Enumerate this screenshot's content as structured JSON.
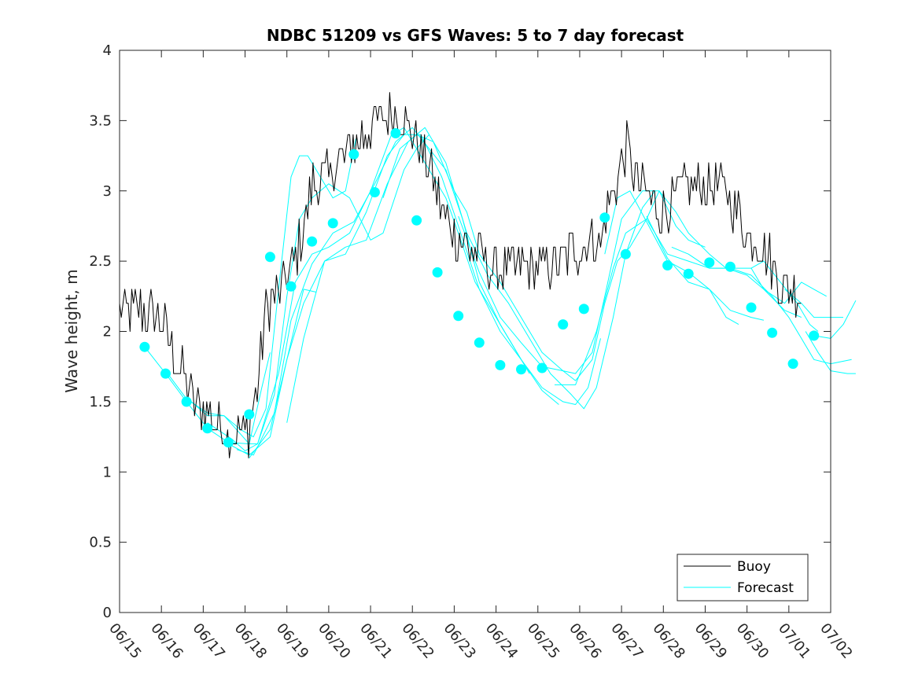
{
  "chart_data": {
    "type": "line",
    "title": "NDBC 51209 vs GFS Waves: 5 to 7 day forecast",
    "xlabel": "",
    "ylabel": "Wave height, m",
    "xlim": [
      "06/15",
      "07/02"
    ],
    "ylim": [
      0,
      4
    ],
    "yticks": [
      0,
      0.5,
      1,
      1.5,
      2,
      2.5,
      3,
      3.5,
      4
    ],
    "xtick_labels": [
      "06/15",
      "06/16",
      "06/17",
      "06/18",
      "06/19",
      "06/20",
      "06/21",
      "06/22",
      "06/23",
      "06/24",
      "06/25",
      "06/26",
      "06/27",
      "06/28",
      "06/29",
      "06/30",
      "07/01",
      "07/02"
    ],
    "grid": false,
    "legend": {
      "position": "bottom-right",
      "entries": [
        "Buoy",
        "Forecast"
      ]
    },
    "colors": {
      "buoy": "#000000",
      "forecast": "#00ffff",
      "axis": "#262626"
    },
    "buoy_anchors": [
      [
        0.0,
        2.15
      ],
      [
        0.5,
        2.15
      ],
      [
        0.9,
        2.1
      ],
      [
        1.1,
        2.0
      ],
      [
        1.5,
        1.7
      ],
      [
        1.8,
        1.5
      ],
      [
        2.2,
        1.4
      ],
      [
        2.7,
        1.25
      ],
      [
        3.1,
        1.3
      ],
      [
        3.3,
        1.6
      ],
      [
        3.5,
        2.2
      ],
      [
        3.8,
        2.25
      ],
      [
        4.3,
        2.6
      ],
      [
        4.6,
        3.05
      ],
      [
        5.0,
        3.1
      ],
      [
        5.5,
        3.3
      ],
      [
        6.0,
        3.45
      ],
      [
        6.4,
        3.55
      ],
      [
        6.8,
        3.5
      ],
      [
        7.2,
        3.3
      ],
      [
        7.5,
        3.1
      ],
      [
        7.7,
        2.85
      ],
      [
        8.0,
        2.7
      ],
      [
        8.5,
        2.55
      ],
      [
        9.0,
        2.45
      ],
      [
        9.5,
        2.45
      ],
      [
        10.0,
        2.45
      ],
      [
        10.5,
        2.5
      ],
      [
        11.0,
        2.6
      ],
      [
        11.5,
        2.65
      ],
      [
        11.8,
        3.0
      ],
      [
        12.1,
        3.3
      ],
      [
        12.5,
        3.0
      ],
      [
        13.0,
        2.85
      ],
      [
        13.5,
        3.0
      ],
      [
        14.0,
        3.05
      ],
      [
        14.5,
        3.0
      ],
      [
        15.0,
        2.7
      ],
      [
        15.4,
        2.6
      ],
      [
        15.7,
        2.4
      ],
      [
        16.0,
        2.3
      ],
      [
        16.3,
        2.25
      ]
    ],
    "forecast_runs": [
      [
        [
          0.6,
          1.89
        ],
        [
          1.1,
          1.7
        ],
        [
          1.6,
          1.5
        ],
        [
          2.1,
          1.31
        ],
        [
          2.6,
          1.21
        ],
        [
          3.1,
          1.2
        ],
        [
          3.4,
          1.6
        ],
        [
          3.6,
          1.85
        ]
      ],
      [
        [
          1.1,
          1.72
        ],
        [
          1.6,
          1.52
        ],
        [
          2.1,
          1.42
        ],
        [
          2.5,
          1.4
        ],
        [
          2.9,
          1.3
        ],
        [
          3.2,
          1.25
        ],
        [
          3.5,
          1.45
        ],
        [
          3.8,
          2.3
        ],
        [
          4.1,
          3.1
        ],
        [
          4.3,
          3.25
        ],
        [
          4.5,
          3.25
        ],
        [
          4.8,
          3.1
        ],
        [
          5.1,
          2.95
        ],
        [
          5.4,
          3.0
        ],
        [
          5.65,
          3.37
        ]
      ],
      [
        [
          1.6,
          1.53
        ],
        [
          2.1,
          1.4
        ],
        [
          2.5,
          1.4
        ],
        [
          2.8,
          1.3
        ],
        [
          3.1,
          1.2
        ],
        [
          3.3,
          1.2
        ],
        [
          3.7,
          1.55
        ],
        [
          4.0,
          2.25
        ],
        [
          4.3,
          2.8
        ],
        [
          4.6,
          2.95
        ],
        [
          5.0,
          3.05
        ],
        [
          5.5,
          2.95
        ],
        [
          6.0,
          2.65
        ],
        [
          6.3,
          2.7
        ],
        [
          6.8,
          3.15
        ],
        [
          7.1,
          3.3
        ],
        [
          7.4,
          3.4
        ]
      ],
      [
        [
          2.1,
          1.35
        ],
        [
          2.7,
          1.23
        ],
        [
          3.0,
          1.15
        ],
        [
          3.3,
          1.2
        ],
        [
          3.8,
          1.7
        ],
        [
          4.2,
          2.35
        ],
        [
          4.6,
          2.55
        ],
        [
          5.0,
          2.6
        ],
        [
          5.5,
          2.7
        ],
        [
          6.0,
          3.0
        ],
        [
          6.5,
          3.4
        ],
        [
          6.8,
          3.45
        ],
        [
          7.3,
          3.2
        ],
        [
          7.8,
          2.95
        ],
        [
          8.1,
          2.7
        ],
        [
          8.5,
          2.35
        ],
        [
          9.0,
          2.1
        ],
        [
          9.5,
          1.85
        ],
        [
          9.8,
          1.7
        ]
      ],
      [
        [
          2.6,
          1.2
        ],
        [
          3.1,
          1.12
        ],
        [
          3.6,
          1.25
        ],
        [
          4.0,
          1.8
        ],
        [
          4.4,
          2.3
        ],
        [
          4.7,
          2.28
        ]
      ],
      [
        [
          2.8,
          1.16
        ],
        [
          3.2,
          1.12
        ],
        [
          3.7,
          1.42
        ],
        [
          4.1,
          2.08
        ],
        [
          4.6,
          2.48
        ],
        [
          5.1,
          2.7
        ],
        [
          5.6,
          2.78
        ],
        [
          6.1,
          3.05
        ],
        [
          6.6,
          3.35
        ],
        [
          7.0,
          3.45
        ],
        [
          7.4,
          3.3
        ],
        [
          7.8,
          3.15
        ],
        [
          8.2,
          2.8
        ],
        [
          8.6,
          2.35
        ],
        [
          9.1,
          2.05
        ],
        [
          9.6,
          1.8
        ],
        [
          10.1,
          1.58
        ],
        [
          10.5,
          1.48
        ]
      ],
      [
        [
          3.1,
          1.1
        ],
        [
          3.6,
          1.3
        ],
        [
          4.0,
          1.8
        ],
        [
          4.4,
          2.2
        ],
        [
          4.9,
          2.5
        ],
        [
          5.4,
          2.55
        ],
        [
          5.9,
          2.85
        ],
        [
          6.4,
          3.25
        ],
        [
          6.8,
          3.4
        ],
        [
          7.2,
          3.4
        ],
        [
          7.7,
          3.1
        ],
        [
          8.1,
          2.75
        ],
        [
          8.6,
          2.3
        ],
        [
          9.1,
          2.0
        ],
        [
          9.6,
          1.8
        ],
        [
          10.1,
          1.6
        ],
        [
          10.6,
          1.5
        ],
        [
          10.9,
          1.48
        ],
        [
          11.2,
          1.6
        ],
        [
          11.5,
          1.95
        ]
      ],
      [
        [
          4.0,
          1.35
        ],
        [
          4.4,
          1.95
        ],
        [
          4.9,
          2.5
        ],
        [
          5.4,
          2.6
        ],
        [
          5.9,
          2.65
        ],
        [
          6.4,
          3.05
        ],
        [
          6.9,
          3.35
        ],
        [
          7.3,
          3.45
        ],
        [
          7.8,
          3.2
        ],
        [
          8.3,
          2.7
        ],
        [
          8.8,
          2.4
        ],
        [
          9.3,
          2.2
        ],
        [
          9.8,
          1.95
        ],
        [
          10.3,
          1.7
        ],
        [
          10.8,
          1.55
        ],
        [
          11.1,
          1.45
        ],
        [
          11.4,
          1.6
        ],
        [
          11.8,
          2.1
        ],
        [
          12.1,
          2.55
        ],
        [
          12.5,
          2.88
        ],
        [
          12.8,
          3.0
        ]
      ],
      [
        [
          6.3,
          2.95
        ],
        [
          6.7,
          3.3
        ],
        [
          7.1,
          3.4
        ],
        [
          7.5,
          3.35
        ],
        [
          8.0,
          3.0
        ],
        [
          8.3,
          2.85
        ],
        [
          8.6,
          2.55
        ],
        [
          9.1,
          2.35
        ],
        [
          9.6,
          2.1
        ],
        [
          10.1,
          1.85
        ],
        [
          10.6,
          1.72
        ],
        [
          10.9,
          1.7
        ],
        [
          11.3,
          1.85
        ],
        [
          11.6,
          2.25
        ],
        [
          12.0,
          2.8
        ],
        [
          12.5,
          3.0
        ],
        [
          12.9,
          3.0
        ],
        [
          13.3,
          2.75
        ],
        [
          13.6,
          2.65
        ],
        [
          14.0,
          2.6
        ]
      ],
      [
        [
          8.1,
          2.82
        ],
        [
          8.6,
          2.42
        ],
        [
          9.1,
          2.1
        ],
        [
          9.6,
          1.92
        ],
        [
          10.1,
          1.75
        ],
        [
          10.6,
          1.72
        ],
        [
          10.9,
          1.65
        ],
        [
          11.3,
          1.8
        ],
        [
          11.6,
          2.2
        ],
        [
          11.9,
          2.5
        ],
        [
          12.2,
          2.6
        ],
        [
          12.6,
          2.8
        ],
        [
          12.9,
          3.0
        ],
        [
          13.3,
          2.85
        ],
        [
          13.6,
          2.7
        ],
        [
          14.1,
          2.55
        ],
        [
          14.5,
          2.45
        ],
        [
          15.0,
          2.4
        ],
        [
          15.4,
          2.3
        ],
        [
          15.9,
          2.15
        ],
        [
          16.3,
          2.1
        ]
      ],
      [
        [
          10.4,
          1.62
        ],
        [
          10.9,
          1.62
        ],
        [
          11.4,
          2.0
        ],
        [
          11.8,
          2.45
        ],
        [
          12.1,
          2.7
        ],
        [
          12.6,
          2.8
        ],
        [
          13.1,
          2.55
        ],
        [
          13.6,
          2.5
        ],
        [
          14.1,
          2.45
        ],
        [
          14.6,
          2.45
        ],
        [
          15.1,
          2.45
        ],
        [
          15.4,
          2.5
        ],
        [
          15.8,
          2.35
        ],
        [
          16.2,
          2.2
        ],
        [
          16.5,
          2.05
        ],
        [
          16.7,
          2.0
        ]
      ],
      [
        [
          11.6,
          2.55
        ],
        [
          11.9,
          2.95
        ],
        [
          12.2,
          3.0
        ],
        [
          12.6,
          2.78
        ],
        [
          13.1,
          2.5
        ],
        [
          13.6,
          2.42
        ],
        [
          14.1,
          2.3
        ],
        [
          14.5,
          2.1
        ],
        [
          14.8,
          2.05
        ]
      ],
      [
        [
          12.6,
          2.82
        ],
        [
          13.1,
          2.52
        ],
        [
          13.6,
          2.35
        ],
        [
          14.1,
          2.3
        ],
        [
          14.6,
          2.15
        ],
        [
          15.1,
          2.1
        ],
        [
          15.4,
          2.08
        ]
      ],
      [
        [
          13.2,
          2.6
        ],
        [
          13.6,
          2.55
        ],
        [
          14.1,
          2.45
        ],
        [
          14.6,
          2.45
        ],
        [
          15.1,
          2.4
        ],
        [
          15.6,
          2.25
        ],
        [
          16.0,
          2.1
        ],
        [
          16.3,
          1.95
        ],
        [
          16.6,
          1.8
        ],
        [
          17.0,
          1.77
        ],
        [
          17.5,
          1.8
        ]
      ],
      [
        [
          15.1,
          2.45
        ],
        [
          15.4,
          2.3
        ],
        [
          15.9,
          2.2
        ],
        [
          16.3,
          2.35
        ],
        [
          16.6,
          2.3
        ],
        [
          16.9,
          2.25
        ]
      ],
      [
        [
          15.9,
          2.3
        ],
        [
          16.3,
          2.2
        ],
        [
          16.6,
          2.1
        ],
        [
          17.0,
          2.1
        ],
        [
          17.3,
          2.1
        ]
      ],
      [
        [
          16.4,
          2.0
        ],
        [
          16.7,
          1.85
        ],
        [
          17.0,
          1.72
        ],
        [
          17.4,
          1.7
        ],
        [
          17.6,
          1.7
        ]
      ],
      [
        [
          16.6,
          1.97
        ],
        [
          17.0,
          1.95
        ],
        [
          17.3,
          2.05
        ],
        [
          17.6,
          2.22
        ]
      ]
    ],
    "forecast_markers": [
      [
        0.6,
        1.89
      ],
      [
        1.1,
        1.7
      ],
      [
        1.6,
        1.5
      ],
      [
        2.1,
        1.31
      ],
      [
        2.6,
        1.21
      ],
      [
        3.1,
        1.41
      ],
      [
        3.6,
        2.53
      ],
      [
        4.1,
        2.32
      ],
      [
        4.6,
        2.64
      ],
      [
        5.1,
        2.77
      ],
      [
        5.6,
        3.26
      ],
      [
        6.1,
        2.99
      ],
      [
        6.6,
        3.41
      ],
      [
        7.1,
        2.79
      ],
      [
        7.6,
        2.42
      ],
      [
        8.1,
        2.11
      ],
      [
        8.6,
        1.92
      ],
      [
        9.1,
        1.76
      ],
      [
        9.6,
        1.73
      ],
      [
        10.1,
        1.74
      ],
      [
        10.6,
        2.05
      ],
      [
        11.1,
        2.16
      ],
      [
        11.6,
        2.81
      ],
      [
        12.1,
        2.55
      ],
      [
        13.1,
        2.47
      ],
      [
        13.6,
        2.41
      ],
      [
        14.1,
        2.49
      ],
      [
        14.6,
        2.46
      ],
      [
        15.1,
        2.17
      ],
      [
        15.6,
        1.99
      ],
      [
        16.1,
        1.77
      ],
      [
        16.6,
        1.97
      ]
    ]
  }
}
